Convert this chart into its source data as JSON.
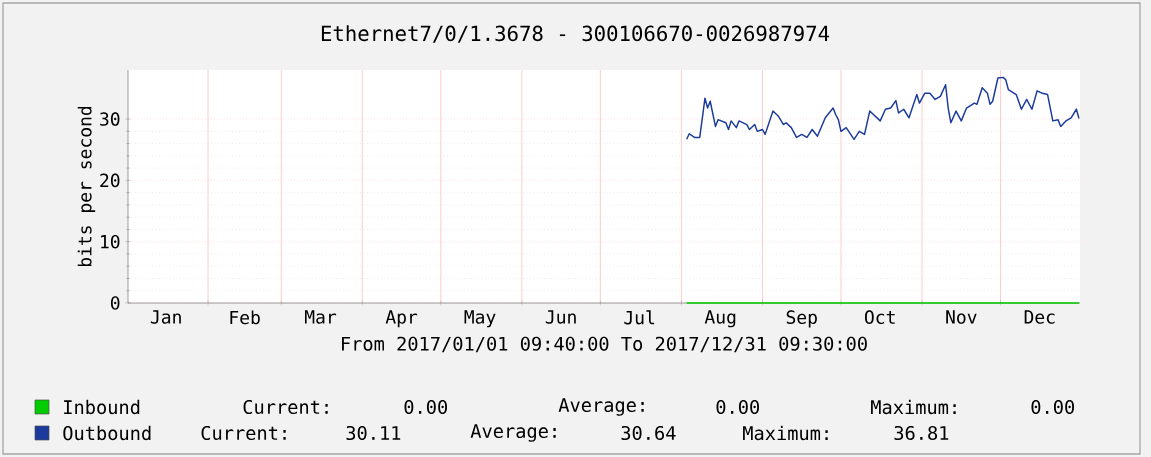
{
  "chart_data": {
    "type": "line",
    "title": "Ethernet7/0/1.3678 - 300106670-0026987974",
    "xlabel": "From 2017/01/01 09:40:00 To 2017/12/31 09:30:00",
    "ylabel": "bits per second",
    "xlim": [
      "2017-01-01T09:40",
      "2017-12-31T09:30"
    ],
    "xticks": [
      {
        "value": "2017-02-01",
        "label": null
      },
      {
        "value": "2017-03-01",
        "label": null
      },
      {
        "value": "2017-04-01",
        "label": null
      },
      {
        "value": "2017-05-01",
        "label": null
      },
      {
        "value": "2017-06-01",
        "label": null
      },
      {
        "value": "2017-07-01",
        "label": null
      },
      {
        "value": "2017-08-01",
        "label": null
      },
      {
        "value": "2017-09-01",
        "label": null
      },
      {
        "value": "2017-10-01",
        "label": null
      },
      {
        "value": "2017-11-01",
        "label": null
      },
      {
        "value": "2017-12-01",
        "label": null
      },
      {
        "value": "2017-01-16",
        "label": "Jan"
      },
      {
        "value": "2017-02-15",
        "label": "Feb"
      },
      {
        "value": "2017-03-16",
        "label": "Mar"
      },
      {
        "value": "2017-04-16",
        "label": "Apr"
      },
      {
        "value": "2017-05-16",
        "label": "May"
      },
      {
        "value": "2017-06-16",
        "label": "Jun"
      },
      {
        "value": "2017-07-16",
        "label": "Jul"
      },
      {
        "value": "2017-08-16",
        "label": "Aug"
      },
      {
        "value": "2017-09-16",
        "label": "Sep"
      },
      {
        "value": "2017-10-16",
        "label": "Oct"
      },
      {
        "value": "2017-11-16",
        "label": "Nov"
      },
      {
        "value": "2017-12-16",
        "label": "Dec"
      }
    ],
    "ylim": [
      0,
      38
    ],
    "yticks": [
      0,
      10,
      20,
      30
    ],
    "grid": true,
    "legend": "bottom",
    "series": [
      {
        "name": "Inbound",
        "color": "#00cc00",
        "x": [
          "2017-08-03",
          "2017-12-31"
        ],
        "values": [
          0,
          0
        ]
      },
      {
        "name": "Outbound",
        "color": "#1a3a9c",
        "x": [
          "2017-08-03",
          "2017-08-04",
          "2017-08-06",
          "2017-08-08",
          "2017-08-09",
          "2017-08-10",
          "2017-08-11",
          "2017-08-12",
          "2017-08-14",
          "2017-08-15",
          "2017-08-18",
          "2017-08-19",
          "2017-08-20",
          "2017-08-22",
          "2017-08-23",
          "2017-08-26",
          "2017-08-27",
          "2017-08-29",
          "2017-08-30",
          "2017-09-01",
          "2017-09-02",
          "2017-09-05",
          "2017-09-07",
          "2017-09-09",
          "2017-09-10",
          "2017-09-12",
          "2017-09-14",
          "2017-09-16",
          "2017-09-18",
          "2017-09-20",
          "2017-09-22",
          "2017-09-25",
          "2017-09-28",
          "2017-09-29",
          "2017-09-30",
          "2017-10-01",
          "2017-10-03",
          "2017-10-06",
          "2017-10-08",
          "2017-10-10",
          "2017-10-12",
          "2017-10-14",
          "2017-10-16",
          "2017-10-18",
          "2017-10-20",
          "2017-10-22",
          "2017-10-23",
          "2017-10-25",
          "2017-10-27",
          "2017-10-30",
          "2017-10-31",
          "2017-11-02",
          "2017-11-04",
          "2017-11-06",
          "2017-11-08",
          "2017-11-10",
          "2017-11-11",
          "2017-11-12",
          "2017-11-14",
          "2017-11-16",
          "2017-11-18",
          "2017-11-21",
          "2017-11-22",
          "2017-11-24",
          "2017-11-26",
          "2017-11-27",
          "2017-11-28",
          "2017-11-30",
          "2017-12-02",
          "2017-12-03",
          "2017-12-04",
          "2017-12-07",
          "2017-12-09",
          "2017-12-11",
          "2017-12-13",
          "2017-12-15",
          "2017-12-17",
          "2017-12-19",
          "2017-12-21",
          "2017-12-23",
          "2017-12-24",
          "2017-12-26",
          "2017-12-28",
          "2017-12-30",
          "2017-12-31"
        ],
        "values": [
          26.7,
          27.6,
          27.0,
          27.0,
          30.2,
          33.4,
          31.8,
          32.9,
          28.8,
          29.9,
          29.4,
          28.3,
          29.7,
          28.6,
          29.7,
          29.1,
          28.3,
          29.1,
          28.0,
          28.3,
          27.5,
          31.3,
          30.5,
          29.1,
          29.4,
          28.6,
          27.0,
          27.5,
          27.0,
          28.3,
          27.2,
          30.2,
          31.8,
          30.7,
          29.9,
          28.0,
          28.6,
          26.7,
          28.0,
          27.5,
          31.3,
          30.5,
          29.7,
          31.6,
          31.8,
          33.0,
          31.0,
          31.6,
          30.2,
          34.0,
          32.6,
          34.2,
          34.2,
          33.2,
          33.7,
          35.6,
          31.8,
          29.4,
          31.3,
          29.7,
          31.8,
          32.6,
          32.4,
          35.1,
          34.2,
          32.4,
          32.9,
          36.7,
          36.8,
          36.4,
          34.8,
          34.0,
          31.6,
          33.2,
          31.6,
          34.6,
          34.2,
          34.0,
          29.7,
          29.9,
          28.8,
          29.7,
          30.2,
          31.6,
          30.1
        ]
      }
    ],
    "annotations": [
      "Current:",
      "0.00",
      "Average:",
      "0.00",
      "Maximum:",
      "0.00",
      "Current:",
      "30.11",
      "Average:",
      "30.64",
      "Maximum:",
      "36.81"
    ]
  }
}
